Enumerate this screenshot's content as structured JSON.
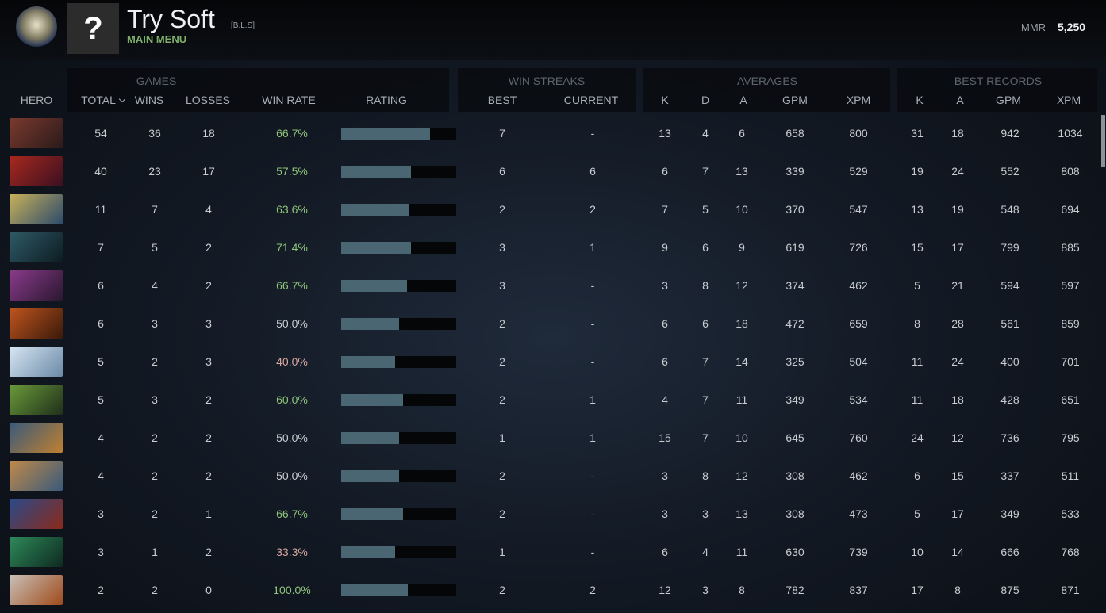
{
  "header": {
    "avatar_text": "?",
    "name": "Try Soft",
    "tag": "[B.L.S]",
    "subtitle": "MAIN MENU",
    "mmr_label": "MMR",
    "mmr": "5,250"
  },
  "table": {
    "groups": [
      "GAMES",
      "WIN STREAKS",
      "AVERAGES",
      "BEST RECORDS"
    ],
    "columns": [
      "HERO",
      "TOTAL",
      "WINS",
      "LOSSES",
      "WIN RATE",
      "RATING",
      "BEST",
      "CURRENT",
      "K",
      "D",
      "A",
      "GPM",
      "XPM",
      "K",
      "A",
      "GPM",
      "XPM"
    ],
    "rating_scale": [
      0,
      100
    ],
    "rows": [
      {
        "total": 54,
        "wins": 36,
        "losses": 18,
        "win_rate": "66.7%",
        "rating": 77,
        "best": 7,
        "current": "-",
        "k": 13,
        "d": 4,
        "a": 6,
        "gpm": 658,
        "xpm": 800,
        "best_k": 31,
        "best_a": 18,
        "best_gpm": 942,
        "best_xpm": 1034
      },
      {
        "total": 40,
        "wins": 23,
        "losses": 17,
        "win_rate": "57.5%",
        "rating": 61,
        "best": 6,
        "current": 6,
        "k": 6,
        "d": 7,
        "a": 13,
        "gpm": 339,
        "xpm": 529,
        "best_k": 19,
        "best_a": 24,
        "best_gpm": 552,
        "best_xpm": 808
      },
      {
        "total": 11,
        "wins": 7,
        "losses": 4,
        "win_rate": "63.6%",
        "rating": 59,
        "best": 2,
        "current": 2,
        "k": 7,
        "d": 5,
        "a": 10,
        "gpm": 370,
        "xpm": 547,
        "best_k": 13,
        "best_a": 19,
        "best_gpm": 548,
        "best_xpm": 694
      },
      {
        "total": 7,
        "wins": 5,
        "losses": 2,
        "win_rate": "71.4%",
        "rating": 61,
        "best": 3,
        "current": 1,
        "k": 9,
        "d": 6,
        "a": 9,
        "gpm": 619,
        "xpm": 726,
        "best_k": 15,
        "best_a": 17,
        "best_gpm": 799,
        "best_xpm": 885
      },
      {
        "total": 6,
        "wins": 4,
        "losses": 2,
        "win_rate": "66.7%",
        "rating": 57,
        "best": 3,
        "current": "-",
        "k": 3,
        "d": 8,
        "a": 12,
        "gpm": 374,
        "xpm": 462,
        "best_k": 5,
        "best_a": 21,
        "best_gpm": 594,
        "best_xpm": 597
      },
      {
        "total": 6,
        "wins": 3,
        "losses": 3,
        "win_rate": "50.0%",
        "rating": 50,
        "best": 2,
        "current": "-",
        "k": 6,
        "d": 6,
        "a": 18,
        "gpm": 472,
        "xpm": 659,
        "best_k": 8,
        "best_a": 28,
        "best_gpm": 561,
        "best_xpm": 859
      },
      {
        "total": 5,
        "wins": 2,
        "losses": 3,
        "win_rate": "40.0%",
        "rating": 47,
        "best": 2,
        "current": "-",
        "k": 6,
        "d": 7,
        "a": 14,
        "gpm": 325,
        "xpm": 504,
        "best_k": 11,
        "best_a": 24,
        "best_gpm": 400,
        "best_xpm": 701
      },
      {
        "total": 5,
        "wins": 3,
        "losses": 2,
        "win_rate": "60.0%",
        "rating": 54,
        "best": 2,
        "current": 1,
        "k": 4,
        "d": 7,
        "a": 11,
        "gpm": 349,
        "xpm": 534,
        "best_k": 11,
        "best_a": 18,
        "best_gpm": 428,
        "best_xpm": 651
      },
      {
        "total": 4,
        "wins": 2,
        "losses": 2,
        "win_rate": "50.0%",
        "rating": 50,
        "best": 1,
        "current": 1,
        "k": 15,
        "d": 7,
        "a": 10,
        "gpm": 645,
        "xpm": 760,
        "best_k": 24,
        "best_a": 12,
        "best_gpm": 736,
        "best_xpm": 795
      },
      {
        "total": 4,
        "wins": 2,
        "losses": 2,
        "win_rate": "50.0%",
        "rating": 50,
        "best": 2,
        "current": "-",
        "k": 3,
        "d": 8,
        "a": 12,
        "gpm": 308,
        "xpm": 462,
        "best_k": 6,
        "best_a": 15,
        "best_gpm": 337,
        "best_xpm": 511
      },
      {
        "total": 3,
        "wins": 2,
        "losses": 1,
        "win_rate": "66.7%",
        "rating": 54,
        "best": 2,
        "current": "-",
        "k": 3,
        "d": 3,
        "a": 13,
        "gpm": 308,
        "xpm": 473,
        "best_k": 5,
        "best_a": 17,
        "best_gpm": 349,
        "best_xpm": 533
      },
      {
        "total": 3,
        "wins": 1,
        "losses": 2,
        "win_rate": "33.3%",
        "rating": 47,
        "best": 1,
        "current": "-",
        "k": 6,
        "d": 4,
        "a": 11,
        "gpm": 630,
        "xpm": 739,
        "best_k": 10,
        "best_a": 14,
        "best_gpm": 666,
        "best_xpm": 768
      },
      {
        "total": 2,
        "wins": 2,
        "losses": 0,
        "win_rate": "100.0%",
        "rating": 58,
        "best": 2,
        "current": 2,
        "k": 12,
        "d": 3,
        "a": 8,
        "gpm": 782,
        "xpm": 837,
        "best_k": 17,
        "best_a": 8,
        "best_gpm": 875,
        "best_xpm": 871
      }
    ]
  }
}
